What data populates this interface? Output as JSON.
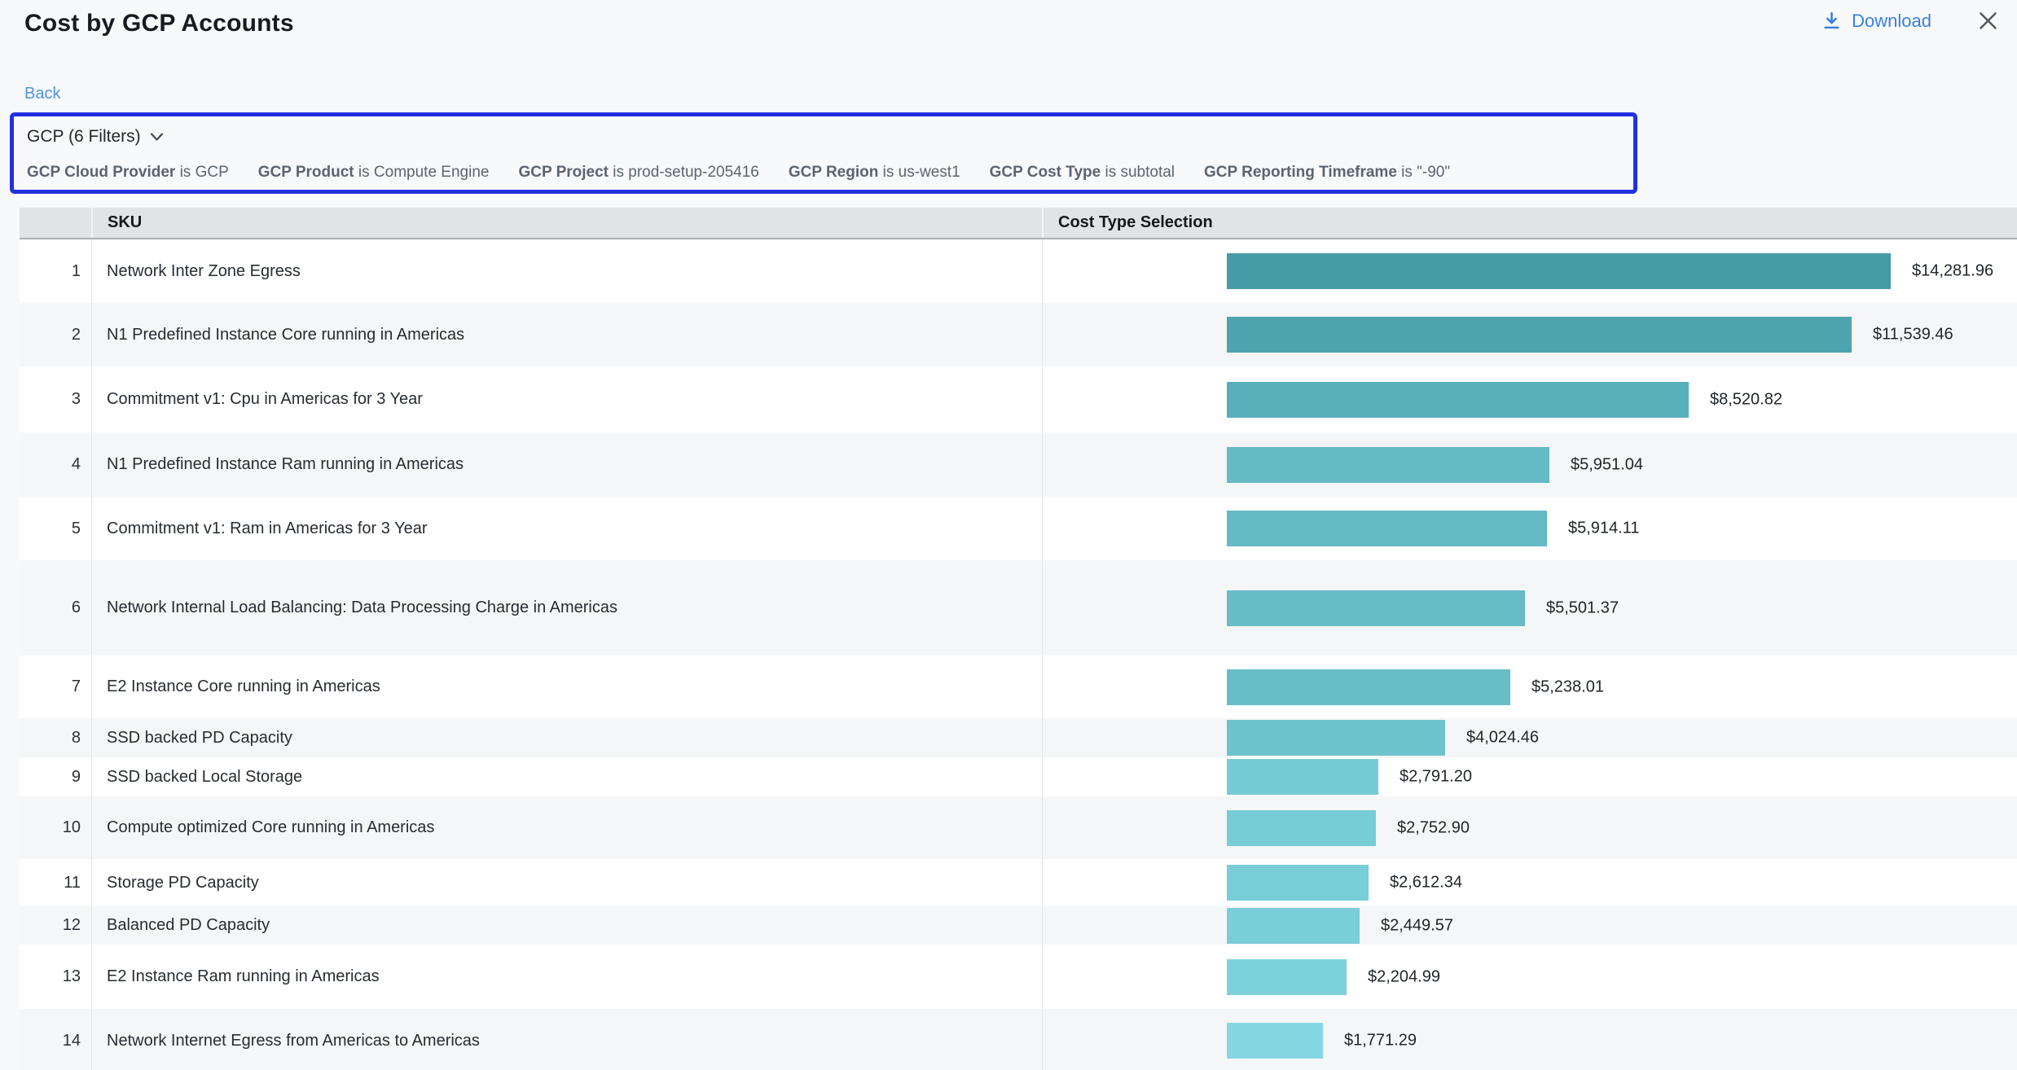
{
  "header": {
    "title": "Cost by GCP Accounts",
    "download_label": "Download"
  },
  "nav": {
    "back_label": "Back"
  },
  "filter_panel": {
    "summary_label": "GCP (6 Filters)",
    "filters": [
      {
        "name": "GCP Cloud Provider",
        "condition": "is GCP"
      },
      {
        "name": "GCP Product",
        "condition": "is Compute Engine"
      },
      {
        "name": "GCP Project",
        "condition": "is prod-setup-205416"
      },
      {
        "name": "GCP Region",
        "condition": "is us-west1"
      },
      {
        "name": "GCP Cost Type",
        "condition": "is subtotal"
      },
      {
        "name": "GCP Reporting Timeframe",
        "condition": "is \"-90\""
      }
    ]
  },
  "table": {
    "columns": {
      "index": "",
      "sku": "SKU",
      "chart": "Cost Type Selection"
    }
  },
  "chart_data": {
    "type": "bar",
    "orientation": "horizontal",
    "title": "Cost by GCP Accounts",
    "xlabel": "Cost Type Selection",
    "ylabel": "SKU",
    "axis_visible": false,
    "grid": false,
    "value_label_position": "right-of-bar",
    "xlim": [
      0,
      14281.96
    ],
    "bar_color_max": "#459CA6",
    "bar_color_min": "#85D8E2",
    "categories": [
      "Network Inter Zone Egress",
      "N1 Predefined Instance Core running in Americas",
      "Commitment v1: Cpu in Americas for 3 Year",
      "N1 Predefined Instance Ram running in Americas",
      "Commitment v1: Ram in Americas for 3 Year",
      "Network Internal Load Balancing: Data Processing Charge in Americas",
      "E2 Instance Core running in Americas",
      "SSD backed PD Capacity",
      "SSD backed Local Storage",
      "Compute optimized Core running in Americas",
      "Storage PD Capacity",
      "Balanced PD Capacity",
      "E2 Instance Ram running in Americas",
      "Network Internet Egress from Americas to Americas"
    ],
    "values": [
      14281.96,
      11539.46,
      8520.82,
      5951.04,
      5914.11,
      5501.37,
      5238.01,
      4024.46,
      2791.2,
      2752.9,
      2612.34,
      2449.57,
      2204.99,
      1771.29
    ],
    "value_labels": [
      "$14,281.96",
      "$11,539.46",
      "$8,520.82",
      "$5,951.04",
      "$5,914.11",
      "$5,501.37",
      "$5,238.01",
      "$4,024.46",
      "$2,791.20",
      "$2,752.90",
      "$2,612.34",
      "$2,449.57",
      "$2,204.99",
      "$1,771.29"
    ]
  },
  "colors": {
    "focus_border": "#2231DF",
    "link_blue": "#4F95E4",
    "action_blue": "#3B7FDC"
  }
}
